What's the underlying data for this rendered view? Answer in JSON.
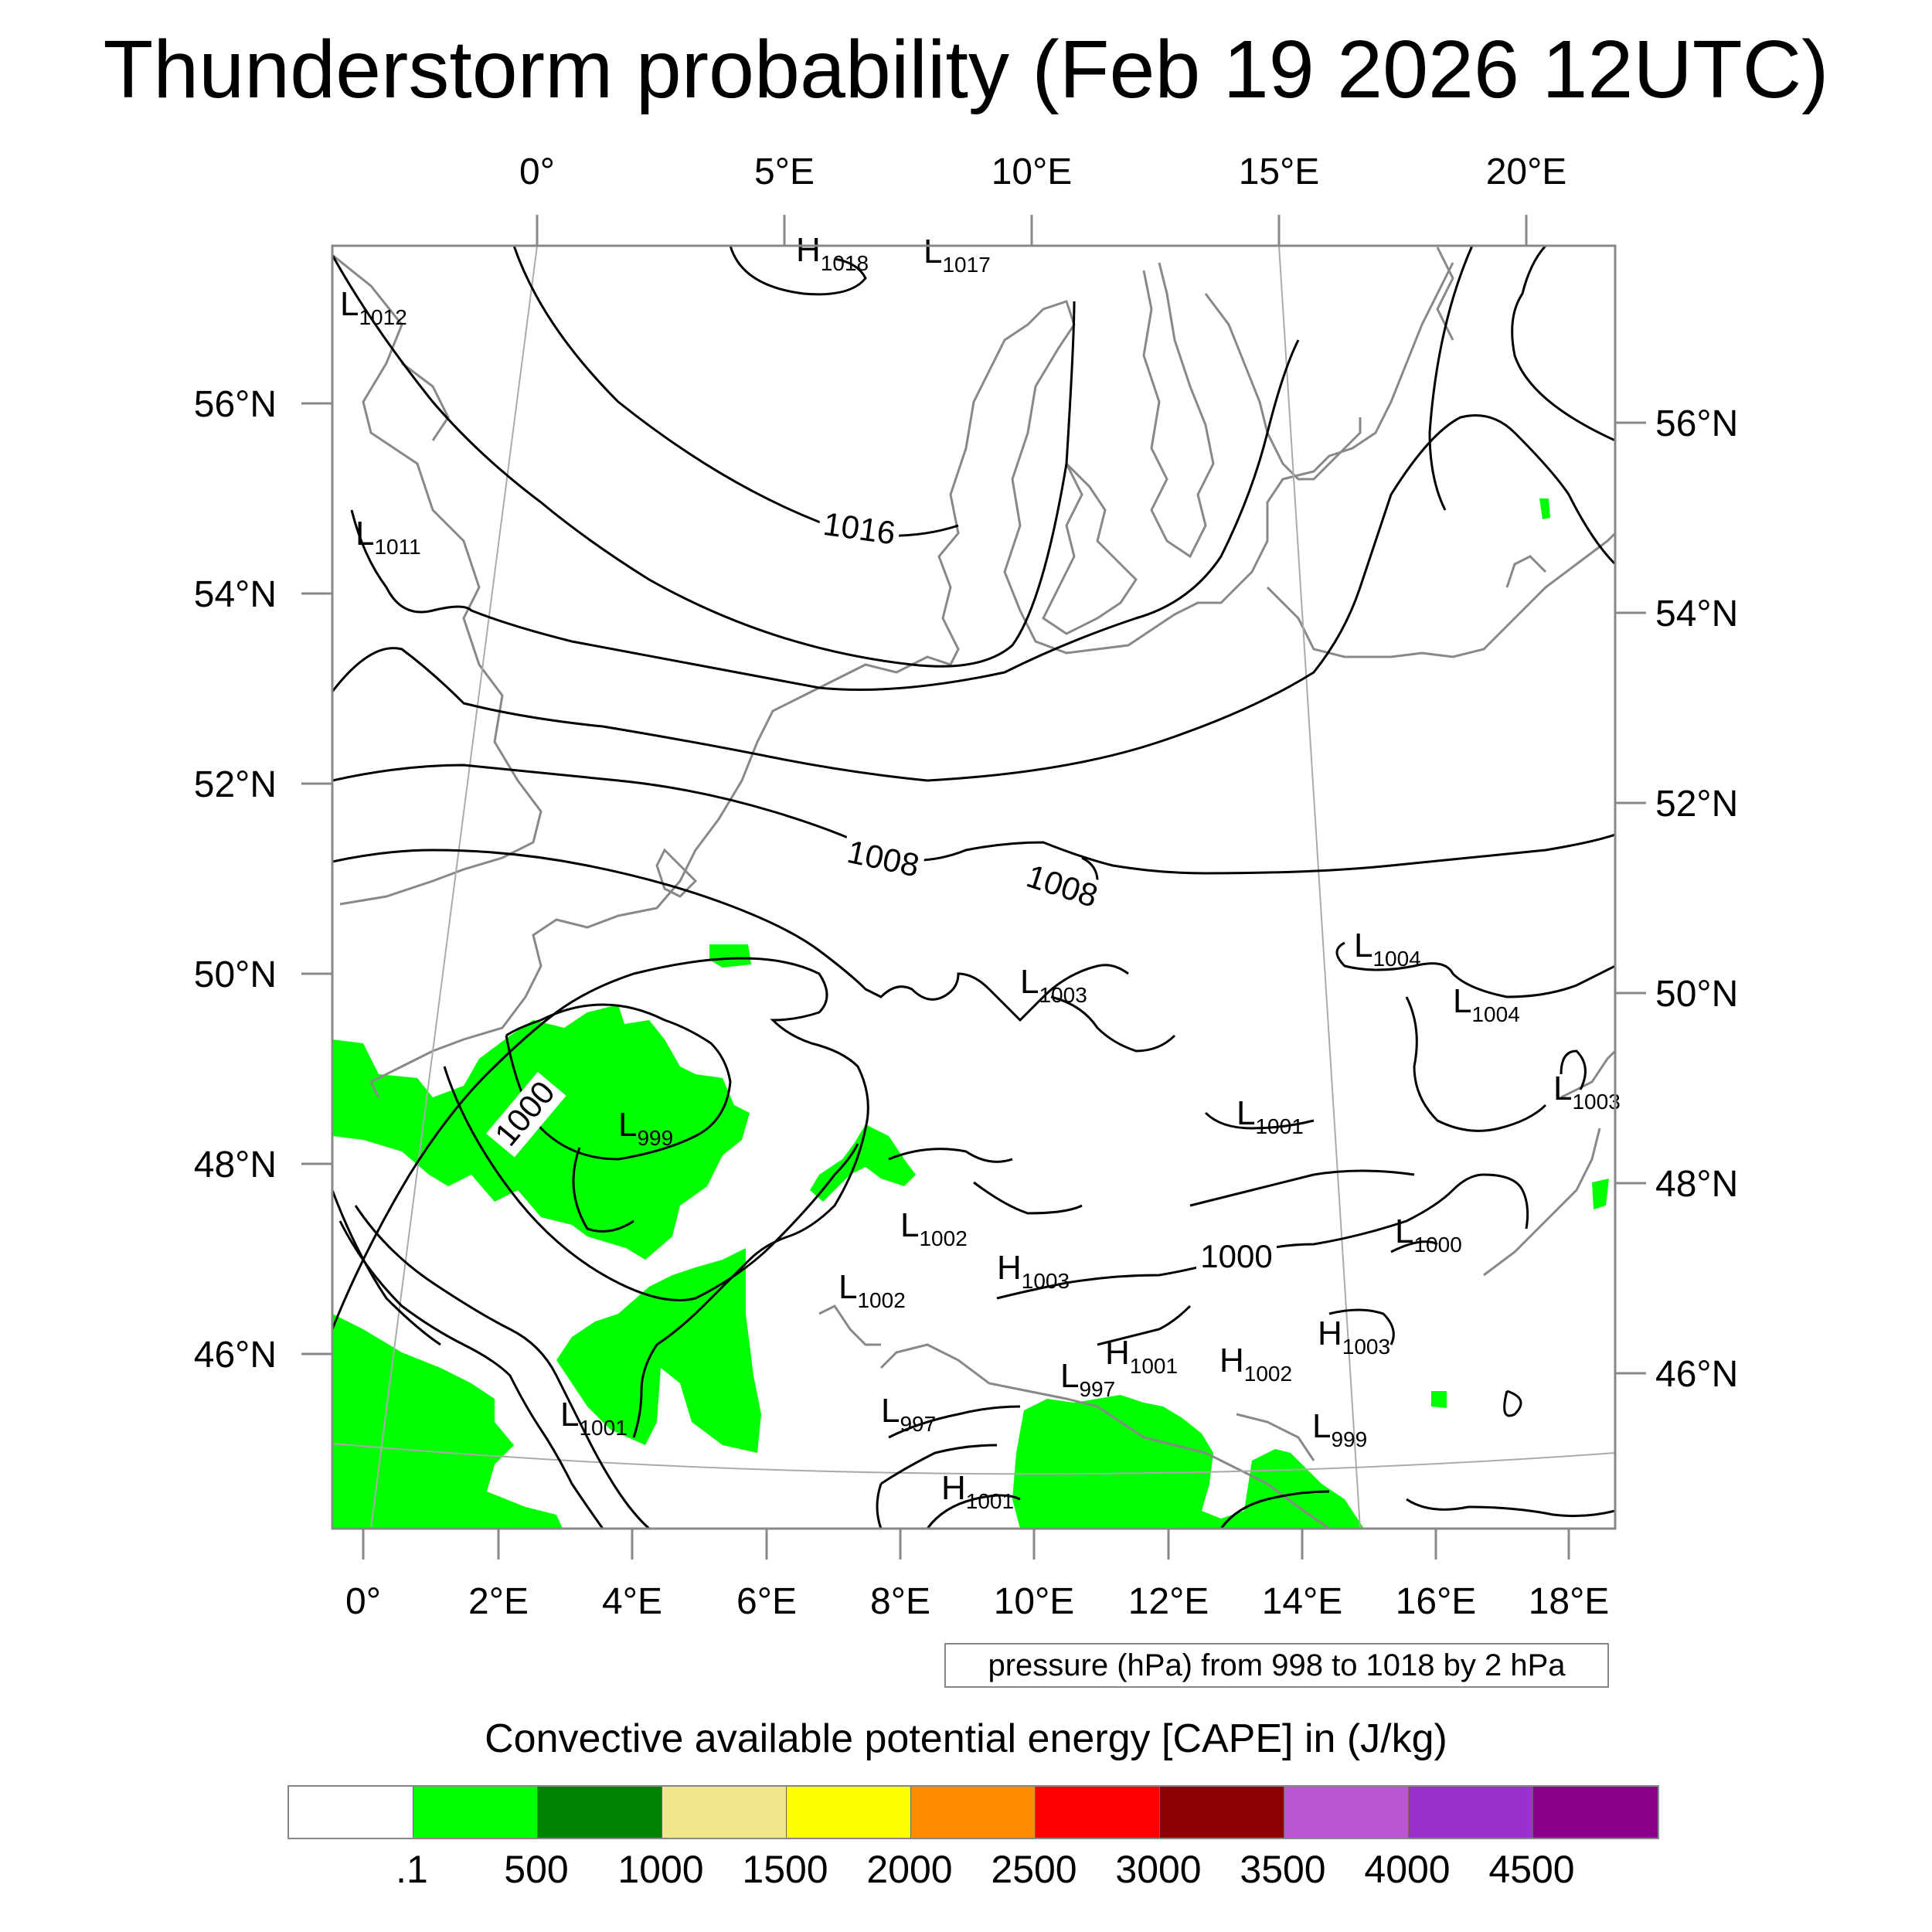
{
  "title": "Thunderstorm probability (Feb 19 2026 12UTC)",
  "top_lon_labels": [
    "0°",
    "5°E",
    "10°E",
    "15°E",
    "20°E"
  ],
  "bottom_lon_labels": [
    "0°",
    "2°E",
    "4°E",
    "6°E",
    "8°E",
    "10°E",
    "12°E",
    "14°E",
    "16°E",
    "18°E"
  ],
  "left_lat_labels": [
    "56°N",
    "54°N",
    "52°N",
    "50°N",
    "48°N",
    "46°N"
  ],
  "right_lat_labels": [
    "56°N",
    "54°N",
    "52°N",
    "50°N",
    "48°N",
    "46°N"
  ],
  "pressure_centers": [
    {
      "type": "H",
      "value": "1018"
    },
    {
      "type": "L",
      "value": "1017"
    },
    {
      "type": "L",
      "value": "1012"
    },
    {
      "type": "L",
      "value": "1011"
    },
    {
      "type": "L",
      "value": "1004"
    },
    {
      "type": "L",
      "value": "1004"
    },
    {
      "type": "L",
      "value": "1003"
    },
    {
      "type": "L",
      "value": "1003"
    },
    {
      "type": "L",
      "value": "999"
    },
    {
      "type": "L",
      "value": "1001"
    },
    {
      "type": "L",
      "value": "1002"
    },
    {
      "type": "H",
      "value": "1003"
    },
    {
      "type": "L",
      "value": "1000"
    },
    {
      "type": "L",
      "value": "1002"
    },
    {
      "type": "H",
      "value": "1003"
    },
    {
      "type": "H",
      "value": "1001"
    },
    {
      "type": "H",
      "value": "1002"
    },
    {
      "type": "L",
      "value": "997"
    },
    {
      "type": "L",
      "value": "997"
    },
    {
      "type": "L",
      "value": "1001"
    },
    {
      "type": "L",
      "value": "999"
    },
    {
      "type": "H",
      "value": "1001"
    }
  ],
  "isobar_labels": [
    "1016",
    "1008",
    "1008",
    "1000",
    "1000"
  ],
  "contour_info": "pressure (hPa) from 998 to 1018 by 2 hPa",
  "colorbar": {
    "title": "Convective available potential energy [CAPE] in (J/kg)",
    "colors": [
      "#ffffff",
      "#00ff00",
      "#008000",
      "#f0e68c",
      "#ffff00",
      "#ff8c00",
      "#ff0000",
      "#8b0000",
      "#ba55d3",
      "#9932cc",
      "#8b008b"
    ],
    "labels": [
      ".1",
      "500",
      "1000",
      "1500",
      "2000",
      "2500",
      "3000",
      "3500",
      "4000",
      "4500"
    ]
  },
  "colors": {
    "cape_fill": "#00ff00",
    "isobar": "#000000",
    "coastline": "#888888",
    "frame": "#888888"
  }
}
